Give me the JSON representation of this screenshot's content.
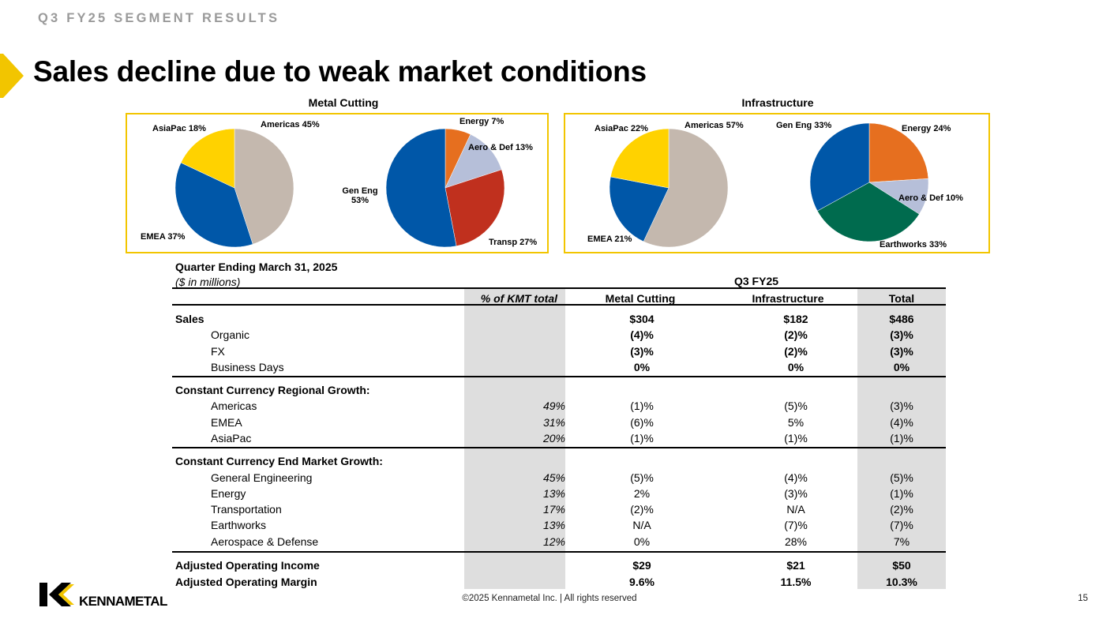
{
  "header": {
    "kicker": "Q3 FY25 SEGMENT RESULTS",
    "title": "Sales decline due to weak market conditions"
  },
  "charts": {
    "metal_title": "Metal Cutting",
    "infra_title": "Infrastructure",
    "mc_region_labels": {
      "americas": "Americas 45%",
      "asiapac": "AsiaPac 18%",
      "emea": "EMEA 37%"
    },
    "mc_market_labels": {
      "energy": "Energy 7%",
      "aero": "Aero & Def 13%",
      "geneng": "Gen Eng\n53%",
      "transp": "Transp 27%"
    },
    "inf_region_labels": {
      "asiapac": "AsiaPac 22%",
      "americas": "Americas 57%",
      "emea": "EMEA 21%"
    },
    "inf_market_labels": {
      "geneng": "Gen Eng 33%",
      "energy": "Energy 24%",
      "aero": "Aero & Def 10%",
      "earth": "Earthworks 33%"
    }
  },
  "chart_data": [
    {
      "type": "pie",
      "title": "Metal Cutting",
      "categories": [
        "Americas",
        "EMEA",
        "AsiaPac"
      ],
      "values": [
        45,
        37,
        18
      ],
      "colors": [
        "#c4b8ae",
        "#0057a8",
        "#ffd200"
      ]
    },
    {
      "type": "pie",
      "title": "Metal Cutting",
      "categories": [
        "Energy",
        "Aero & Def",
        "Transp",
        "Gen Eng"
      ],
      "values": [
        7,
        13,
        27,
        53
      ],
      "colors": [
        "#e66f1f",
        "#b6bfd9",
        "#c0301e",
        "#0057a8"
      ]
    },
    {
      "type": "pie",
      "title": "Infrastructure",
      "categories": [
        "Americas",
        "EMEA",
        "AsiaPac"
      ],
      "values": [
        57,
        21,
        22
      ],
      "colors": [
        "#c4b8ae",
        "#0057a8",
        "#ffd200"
      ]
    },
    {
      "type": "pie",
      "title": "Infrastructure",
      "categories": [
        "Energy",
        "Aero & Def",
        "Earthworks",
        "Gen Eng"
      ],
      "values": [
        24,
        10,
        33,
        33
      ],
      "colors": [
        "#e66f1f",
        "#b6bfd9",
        "#006b4e",
        "#0057a8"
      ]
    }
  ],
  "table": {
    "caption": "Quarter Ending March 31, 2025",
    "units": "($ in millions)",
    "period": "Q3 FY25",
    "headers": {
      "pct": "% of KMT total",
      "mc": "Metal Cutting",
      "inf": "Infrastructure",
      "total": "Total"
    },
    "rows": [
      {
        "label": "Sales",
        "pct": "",
        "mc": "$304",
        "inf": "$182",
        "total": "$486"
      },
      {
        "label": "Organic",
        "pct": "",
        "mc": "(4)%",
        "inf": "(2)%",
        "total": "(3)%"
      },
      {
        "label": "FX",
        "pct": "",
        "mc": "(3)%",
        "inf": "(2)%",
        "total": "(3)%"
      },
      {
        "label": "Business Days",
        "pct": "",
        "mc": "0%",
        "inf": "0%",
        "total": "0%"
      },
      {
        "label": "Constant Currency Regional Growth:",
        "pct": "",
        "mc": "",
        "inf": "",
        "total": ""
      },
      {
        "label": "Americas",
        "pct": "49%",
        "mc": "(1)%",
        "inf": "(5)%",
        "total": "(3)%"
      },
      {
        "label": "EMEA",
        "pct": "31%",
        "mc": "(6)%",
        "inf": "5%",
        "total": "(4)%"
      },
      {
        "label": "AsiaPac",
        "pct": "20%",
        "mc": "(1)%",
        "inf": "(1)%",
        "total": "(1)%"
      },
      {
        "label": "Constant Currency End Market Growth:",
        "pct": "",
        "mc": "",
        "inf": "",
        "total": ""
      },
      {
        "label": "General Engineering",
        "pct": "45%",
        "mc": "(5)%",
        "inf": "(4)%",
        "total": "(5)%"
      },
      {
        "label": "Energy",
        "pct": "13%",
        "mc": "2%",
        "inf": "(3)%",
        "total": "(1)%"
      },
      {
        "label": "Transportation",
        "pct": "17%",
        "mc": "(2)%",
        "inf": "N/A",
        "total": "(2)%"
      },
      {
        "label": "Earthworks",
        "pct": "13%",
        "mc": "N/A",
        "inf": "(7)%",
        "total": "(7)%"
      },
      {
        "label": "Aerospace & Defense",
        "pct": "12%",
        "mc": "0%",
        "inf": "28%",
        "total": "7%"
      },
      {
        "label": "Adjusted Operating Income",
        "pct": "",
        "mc": "$29",
        "inf": "$21",
        "total": "$50"
      },
      {
        "label": "Adjusted Operating Margin",
        "pct": "",
        "mc": "9.6%",
        "inf": "11.5%",
        "total": "10.3%"
      }
    ]
  },
  "footer": {
    "copyright": "©2025 Kennametal Inc.  |  All rights reserved",
    "page": "15",
    "logo_text": "KENNAMETAL"
  },
  "colors": {
    "accent": "#f2c500",
    "grey_column": "#dedede",
    "kicker": "#9a9a9a"
  }
}
